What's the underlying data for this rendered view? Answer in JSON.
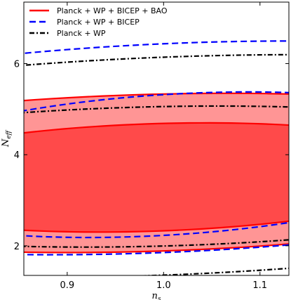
{
  "chart_data": {
    "type": "contour",
    "xlabel": "n",
    "xlabel_sub": "s",
    "ylabel": "N",
    "ylabel_sub": "eff",
    "xlim": [
      0.855,
      1.13
    ],
    "ylim": [
      1.35,
      7.35
    ],
    "xticks": [
      0.9,
      1.0,
      1.1
    ],
    "xtick_labels": [
      "0.9",
      "1.0",
      "1.1"
    ],
    "yticks": [
      2,
      4,
      6
    ],
    "ytick_labels": [
      "2",
      "4",
      "6"
    ],
    "grid": false,
    "legend_position": "top-left",
    "series": [
      {
        "name": "Planck + WP + BICEP + BAO",
        "color": "#ff0000",
        "style": "solid-filled",
        "contours": [
          {
            "level": "68%",
            "fill": "#ff4a4a",
            "center": [
              0.9885,
              3.5
            ],
            "semi_axis_major": 1.2,
            "semi_axis_minor": 0.0155,
            "slope": 20.0
          },
          {
            "level": "95%",
            "fill": "#ff9595",
            "center": [
              0.9835,
              3.6
            ],
            "semi_axis_major": 1.75,
            "semi_axis_minor": 0.025,
            "slope": 19.5
          }
        ]
      },
      {
        "name": "Planck + WP + BICEP",
        "color": "#0000ff",
        "style": "dashed",
        "contours": [
          {
            "level": "68%",
            "center": [
              1.005,
              3.78
            ],
            "semi_axis_major": 1.6,
            "semi_axis_minor": 0.017,
            "slope": 18.5
          },
          {
            "level": "95%",
            "center": [
              1.007,
              4.15
            ],
            "semi_axis_major": 2.35,
            "semi_axis_minor": 0.031,
            "slope": 18.0
          }
        ]
      },
      {
        "name": "Planck + WP",
        "color": "#000000",
        "style": "dashdot",
        "contours": [
          {
            "level": "68%",
            "center": [
              0.9875,
              3.52
            ],
            "semi_axis_major": 1.55,
            "semi_axis_minor": 0.0225,
            "slope": 20.5
          },
          {
            "level": "95%",
            "center": [
              1.002,
              3.75
            ],
            "semi_axis_major": 2.45,
            "semi_axis_minor": 0.037,
            "slope": 17.0
          }
        ]
      }
    ]
  }
}
